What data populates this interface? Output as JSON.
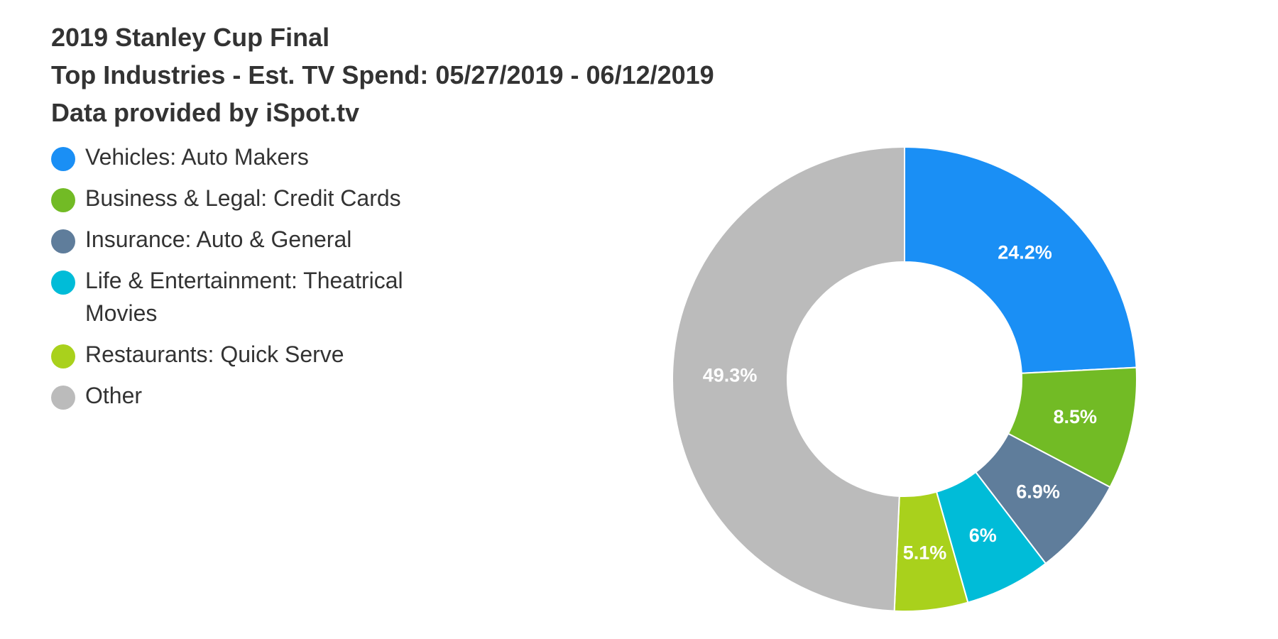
{
  "chart_data": {
    "type": "pie",
    "title": "2019 Stanley Cup Final",
    "subtitle": "Top Industries - Est. TV Spend: 05/27/2019 - 06/12/2019",
    "subtitle2": "Data provided by iSpot.tv",
    "legend_position": "top-left",
    "slices": [
      {
        "name": "Vehicles: Auto Makers",
        "value": 24.2,
        "label": "24.2%",
        "color": "#1a8ff5"
      },
      {
        "name": "Business & Legal: Credit Cards",
        "value": 8.5,
        "label": "8.5%",
        "color": "#72bb25"
      },
      {
        "name": "Insurance: Auto & General",
        "value": 6.9,
        "label": "6.9%",
        "color": "#5f7d9b"
      },
      {
        "name": "Life & Entertainment: Theatrical Movies",
        "value": 6,
        "label": "6%",
        "color": "#00bcd8"
      },
      {
        "name": "Restaurants: Quick Serve",
        "value": 5.1,
        "label": "5.1%",
        "color": "#a9d11c"
      },
      {
        "name": "Other",
        "value": 49.3,
        "label": "49.3%",
        "color": "#bbbbbb"
      }
    ]
  }
}
